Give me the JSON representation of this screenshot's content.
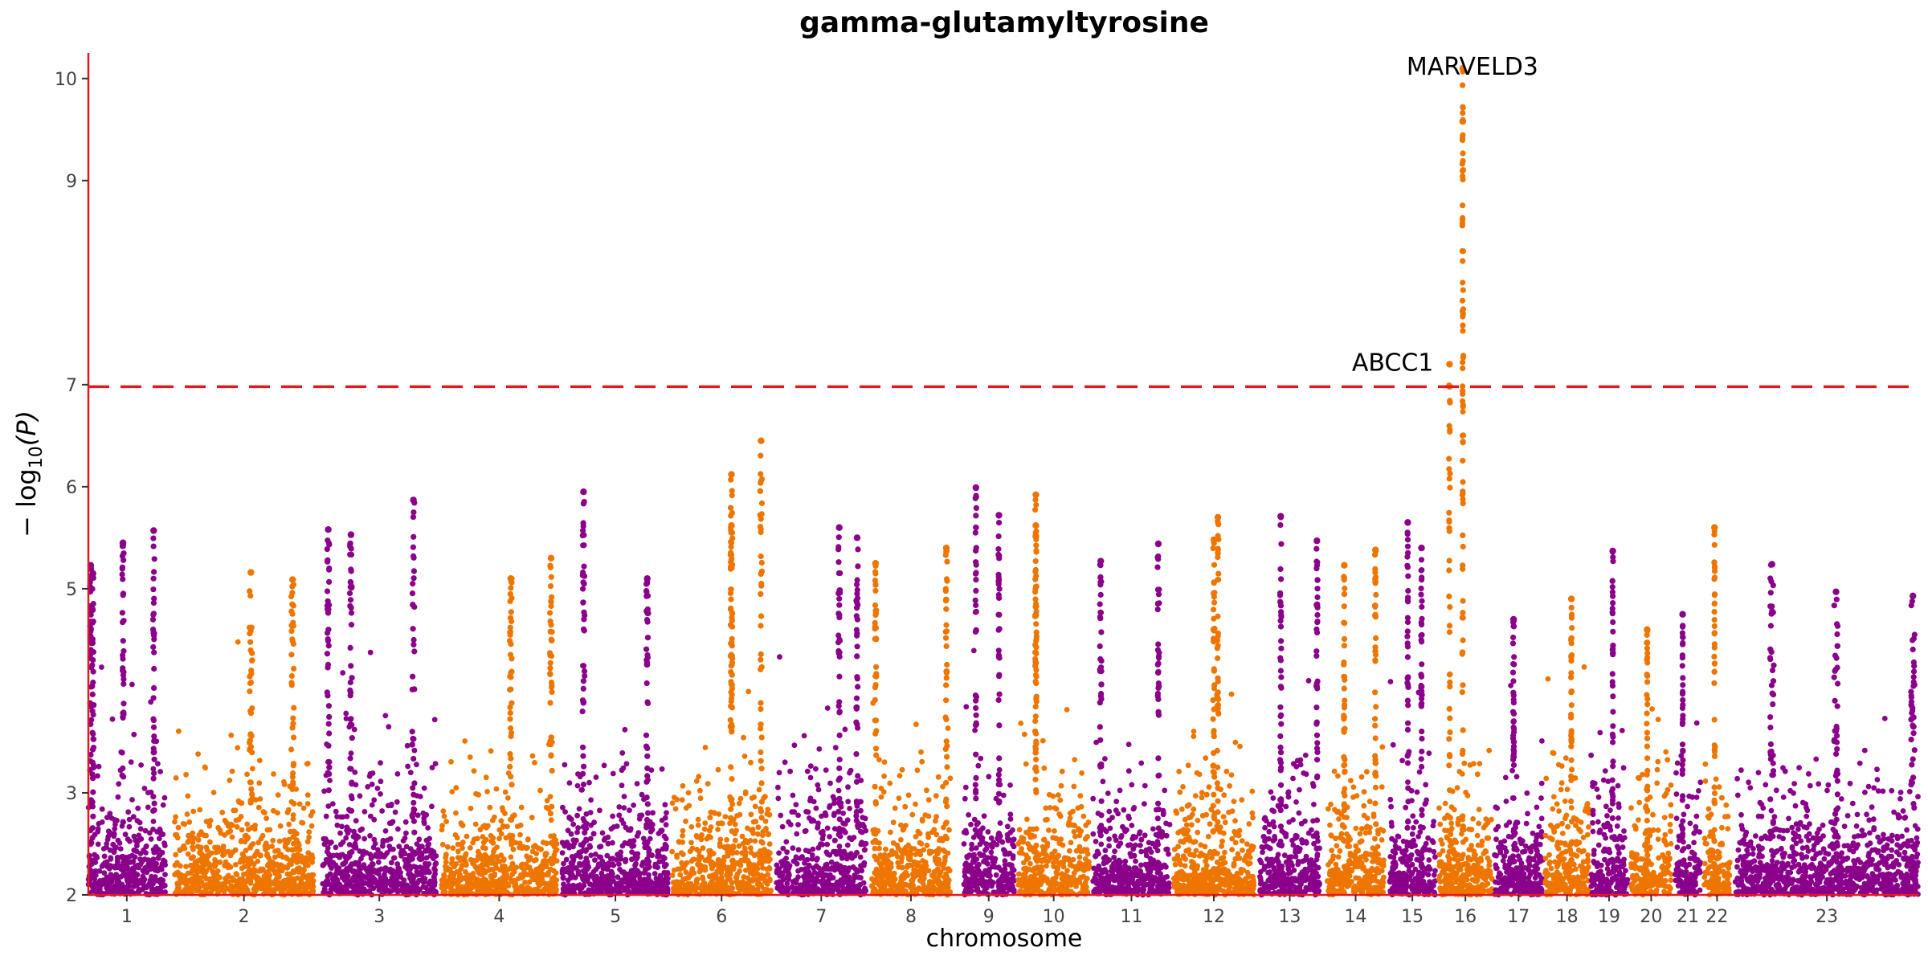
{
  "chart_data": {
    "type": "scatter",
    "title": "gamma-glutamyltyrosine",
    "xlabel": "chromosome",
    "ylabel_prefix": "− log",
    "ylabel_sub": "10",
    "ylabel_suffix": "(P)",
    "ylim": [
      2,
      10.25
    ],
    "yticks": [
      2,
      3,
      5,
      6,
      7,
      9,
      10
    ],
    "threshold": 6.98,
    "grid": false,
    "colors": {
      "odd": "#8b008b",
      "even": "#ee7600",
      "threshold": "#e31a1c",
      "axis": "#e31a1c"
    },
    "chromosomes": [
      {
        "label": "1",
        "start": 0,
        "end": 0.042,
        "peaks": [
          [
            0.03,
            5.23
          ],
          [
            0.06,
            5.15
          ],
          [
            0.45,
            5.45
          ],
          [
            0.85,
            5.57
          ]
        ]
      },
      {
        "label": "2",
        "start": 0.047,
        "end": 0.123,
        "peaks": [
          [
            0.55,
            5.16
          ],
          [
            0.85,
            5.09
          ]
        ]
      },
      {
        "label": "3",
        "start": 0.128,
        "end": 0.19,
        "peaks": [
          [
            0.05,
            5.58
          ],
          [
            0.25,
            5.53
          ],
          [
            0.8,
            5.87
          ]
        ]
      },
      {
        "label": "4",
        "start": 0.193,
        "end": 0.256,
        "peaks": [
          [
            0.6,
            5.1
          ],
          [
            0.95,
            5.3
          ]
        ]
      },
      {
        "label": "5",
        "start": 0.259,
        "end": 0.317,
        "peaks": [
          [
            0.2,
            5.95
          ],
          [
            0.8,
            5.1
          ]
        ]
      },
      {
        "label": "6",
        "start": 0.319,
        "end": 0.373,
        "peaks": [
          [
            0.6,
            5.62
          ],
          [
            0.6,
            6.12
          ],
          [
            0.9,
            6.45
          ]
        ]
      },
      {
        "label": "7",
        "start": 0.376,
        "end": 0.425,
        "peaks": [
          [
            0.7,
            5.6
          ],
          [
            0.9,
            5.5
          ]
        ]
      },
      {
        "label": "8",
        "start": 0.428,
        "end": 0.471,
        "peaks": [
          [
            0.05,
            5.25
          ],
          [
            0.95,
            5.4
          ]
        ]
      },
      {
        "label": "9",
        "start": 0.478,
        "end": 0.506,
        "peaks": [
          [
            0.25,
            5.99
          ],
          [
            0.7,
            5.72
          ]
        ]
      },
      {
        "label": "10",
        "start": 0.508,
        "end": 0.547,
        "peaks": [
          [
            0.25,
            5.92
          ],
          [
            0.25,
            5.62
          ]
        ]
      },
      {
        "label": "11",
        "start": 0.549,
        "end": 0.591,
        "peaks": [
          [
            0.1,
            5.27
          ],
          [
            0.85,
            5.44
          ]
        ]
      },
      {
        "label": "12",
        "start": 0.593,
        "end": 0.637,
        "peaks": [
          [
            0.55,
            5.7
          ],
          [
            0.5,
            5.48
          ]
        ]
      },
      {
        "label": "13",
        "start": 0.64,
        "end": 0.673,
        "peaks": [
          [
            0.35,
            5.71
          ],
          [
            0.95,
            5.47
          ]
        ]
      },
      {
        "label": "14",
        "start": 0.677,
        "end": 0.708,
        "peaks": [
          [
            0.3,
            5.23
          ],
          [
            0.85,
            5.38
          ]
        ]
      },
      {
        "label": "15",
        "start": 0.711,
        "end": 0.736,
        "peaks": [
          [
            0.4,
            5.65
          ],
          [
            0.7,
            5.4
          ]
        ]
      },
      {
        "label": "16",
        "start": 0.738,
        "end": 0.767,
        "peaks": [
          [
            0.45,
            9.58
          ],
          [
            0.45,
            10.1
          ],
          [
            0.2,
            7.2
          ]
        ]
      },
      {
        "label": "17",
        "start": 0.768,
        "end": 0.795,
        "peaks": [
          [
            0.4,
            4.7
          ]
        ]
      },
      {
        "label": "18",
        "start": 0.796,
        "end": 0.82,
        "peaks": [
          [
            0.6,
            4.9
          ]
        ]
      },
      {
        "label": "19",
        "start": 0.821,
        "end": 0.841,
        "peaks": [
          [
            0.6,
            5.37
          ]
        ]
      },
      {
        "label": "20",
        "start": 0.843,
        "end": 0.865,
        "peaks": [
          [
            0.4,
            4.6
          ]
        ]
      },
      {
        "label": "21",
        "start": 0.867,
        "end": 0.881,
        "peaks": [
          [
            0.3,
            4.75
          ]
        ]
      },
      {
        "label": "22",
        "start": 0.883,
        "end": 0.897,
        "peaks": [
          [
            0.4,
            5.6
          ]
        ]
      },
      {
        "label": "23",
        "start": 0.9,
        "end": 1.0,
        "peaks": [
          [
            0.2,
            5.24
          ],
          [
            0.55,
            4.97
          ],
          [
            0.97,
            4.93
          ]
        ]
      }
    ],
    "annotations": [
      {
        "text": "MARVELD3",
        "chrom": "16",
        "pos": 0.45,
        "y": 10.1
      },
      {
        "text": "ABCC1",
        "chrom": "16",
        "pos": 0.2,
        "y": 7.2
      }
    ]
  }
}
